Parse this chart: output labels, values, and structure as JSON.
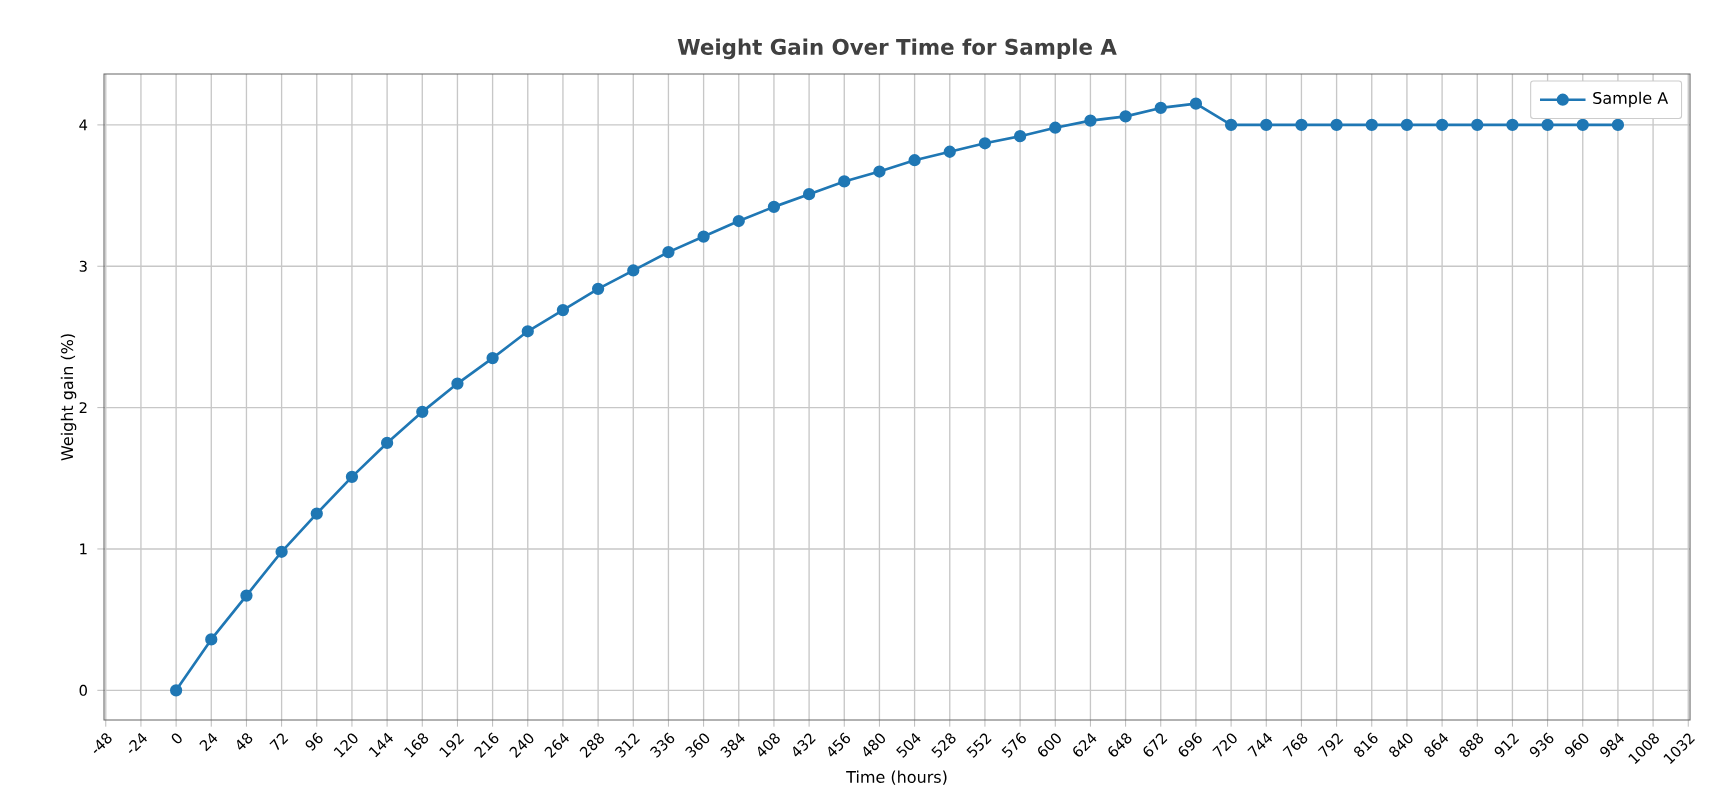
{
  "chart_data": {
    "type": "line",
    "title": "Weight Gain Over Time for Sample A",
    "xlabel": "Time (hours)",
    "ylabel": "Weight gain (%)",
    "x": [
      0,
      24,
      48,
      72,
      96,
      120,
      144,
      168,
      192,
      216,
      240,
      264,
      288,
      312,
      336,
      360,
      384,
      408,
      432,
      456,
      480,
      504,
      528,
      552,
      576,
      600,
      624,
      648,
      672,
      696,
      720,
      744,
      768,
      792,
      816,
      840,
      864,
      888,
      912,
      936,
      960,
      984
    ],
    "series": [
      {
        "name": "Sample A",
        "color": "#1f77b4",
        "values": [
          0,
          0.36,
          0.67,
          0.98,
          1.25,
          1.51,
          1.75,
          1.97,
          2.17,
          2.35,
          2.54,
          2.69,
          2.84,
          2.97,
          3.1,
          3.21,
          3.32,
          3.42,
          3.51,
          3.6,
          3.67,
          3.75,
          3.81,
          3.87,
          3.92,
          3.98,
          4.03,
          4.06,
          4.12,
          4.15,
          4,
          4,
          4,
          4,
          4,
          4,
          4,
          4,
          4,
          4,
          4,
          4
        ]
      }
    ],
    "xlim": [
      -49.2,
      1033.2
    ],
    "ylim": [
      -0.21,
      4.36
    ],
    "xticks": [
      -48,
      -24,
      0,
      24,
      48,
      72,
      96,
      120,
      144,
      168,
      192,
      216,
      240,
      264,
      288,
      312,
      336,
      360,
      384,
      408,
      432,
      456,
      480,
      504,
      528,
      552,
      576,
      600,
      624,
      648,
      672,
      696,
      720,
      744,
      768,
      792,
      816,
      840,
      864,
      888,
      912,
      936,
      960,
      984,
      1008,
      1032
    ],
    "yticks": [
      0,
      1,
      2,
      3,
      4
    ],
    "grid": true,
    "legend": "top right",
    "marker": "circle",
    "line_style": "solid"
  }
}
